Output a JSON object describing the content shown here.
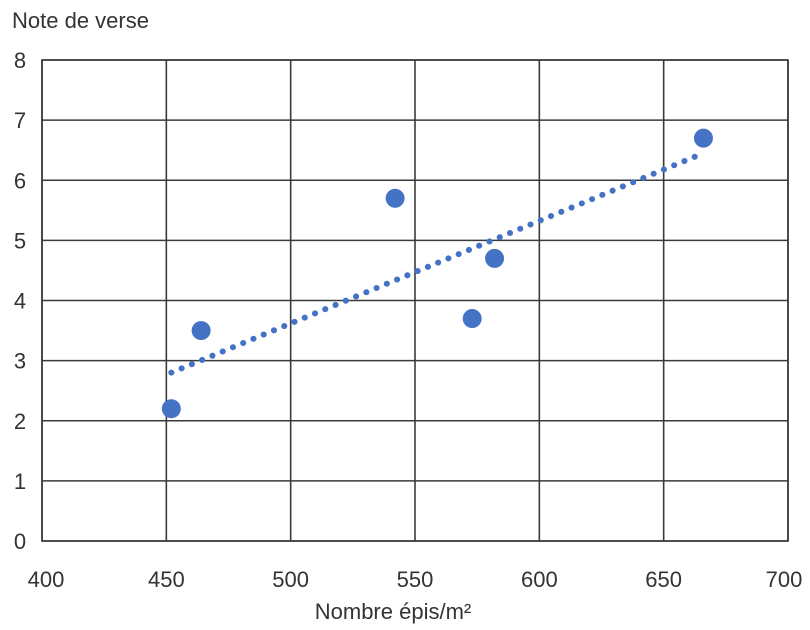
{
  "chart_data": {
    "type": "scatter",
    "ylabel": "Note de verse",
    "xlabel": "Nombre épis/m²",
    "xlim": [
      400,
      700
    ],
    "ylim": [
      0,
      8
    ],
    "x_ticks": [
      "400",
      "450",
      "500",
      "550",
      "600",
      "650",
      "700"
    ],
    "y_ticks": [
      "0",
      "1",
      "2",
      "3",
      "4",
      "5",
      "6",
      "7",
      "8"
    ],
    "grid": true,
    "points": [
      {
        "x": 452,
        "y": 2.2
      },
      {
        "x": 464,
        "y": 3.5
      },
      {
        "x": 542,
        "y": 5.7
      },
      {
        "x": 573,
        "y": 3.7
      },
      {
        "x": 582,
        "y": 4.7
      },
      {
        "x": 666,
        "y": 6.7
      }
    ],
    "trendline": {
      "style": "dotted",
      "from": {
        "x": 452,
        "y": 2.8
      },
      "to": {
        "x": 666,
        "y": 6.45
      }
    },
    "colors": {
      "marker": "#4472c4",
      "trend": "#4472c4",
      "grid": "#3a3a3a"
    }
  }
}
